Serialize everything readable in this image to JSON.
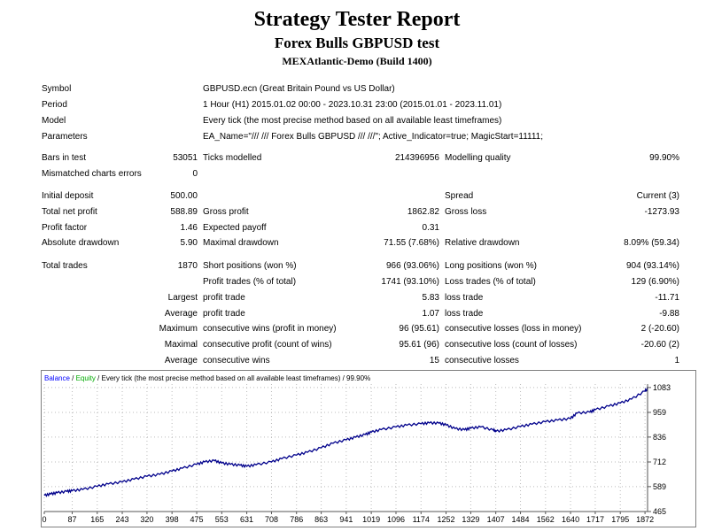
{
  "report": {
    "title": "Strategy Tester Report",
    "subtitle": "Forex Bulls GBPUSD test",
    "server": "MEXAtlantic-Demo (Build 1400)"
  },
  "settings": {
    "symbol_label": "Symbol",
    "symbol_value": "GBPUSD.ecn (Great Britain Pound vs US Dollar)",
    "period_label": "Period",
    "period_value": "1 Hour (H1) 2015.01.02 00:00 - 2023.10.31 23:00 (2015.01.01 - 2023.11.01)",
    "model_label": "Model",
    "model_value": "Every tick (the most precise method based on all available least timeframes)",
    "parameters_label": "Parameters",
    "parameters_value": "EA_Name=\"/// /// Forex Bulls GBPUSD /// ///\"; Active_Indicator=true; MagicStart=11111;"
  },
  "stats": {
    "bars_label": "Bars in test",
    "bars_value": "53051",
    "ticks_label": "Ticks modelled",
    "ticks_value": "214396956",
    "quality_label": "Modelling quality",
    "quality_value": "99.90%",
    "mismatch_label": "Mismatched charts errors",
    "mismatch_value": "0",
    "deposit_label": "Initial deposit",
    "deposit_value": "500.00",
    "spread_label": "Spread",
    "spread_value": "Current (3)",
    "netprofit_label": "Total net profit",
    "netprofit_value": "588.89",
    "grossprofit_label": "Gross profit",
    "grossprofit_value": "1862.82",
    "grossloss_label": "Gross loss",
    "grossloss_value": "-1273.93",
    "pf_label": "Profit factor",
    "pf_value": "1.46",
    "ep_label": "Expected payoff",
    "ep_value": "0.31",
    "absdd_label": "Absolute drawdown",
    "absdd_value": "5.90",
    "maxdd_label": "Maximal drawdown",
    "maxdd_value": "71.55 (7.68%)",
    "reldd_label": "Relative drawdown",
    "reldd_value": "8.09% (59.34)",
    "trades_label": "Total trades",
    "trades_value": "1870",
    "short_label": "Short positions (won %)",
    "short_value": "966 (93.06%)",
    "long_label": "Long positions (won %)",
    "long_value": "904 (93.14%)",
    "pt_label": "Profit trades (% of total)",
    "pt_value": "1741 (93.10%)",
    "lt_label": "Loss trades (% of total)",
    "lt_value": "129 (6.90%)",
    "largest_label": "Largest",
    "largest_pt_label": "profit trade",
    "largest_pt_value": "5.83",
    "largest_lt_label": "loss trade",
    "largest_lt_value": "-11.71",
    "average_label": "Average",
    "average_pt_label": "profit trade",
    "average_pt_value": "1.07",
    "average_lt_label": "loss trade",
    "average_lt_value": "-9.88",
    "maximum_label": "Maximum",
    "max_cw_label": "consecutive wins (profit in money)",
    "max_cw_value": "96 (95.61)",
    "max_cl_label": "consecutive losses (loss in money)",
    "max_cl_value": "2 (-20.60)",
    "maximal_label": "Maximal",
    "mxl_cp_label": "consecutive profit (count of wins)",
    "mxl_cp_value": "95.61 (96)",
    "mxl_cl_label": "consecutive loss (count of losses)",
    "mxl_cl_value": "-20.60 (2)",
    "average2_label": "Average",
    "avg_cw_label": "consecutive wins",
    "avg_cw_value": "15",
    "avg_cl_label": "consecutive losses",
    "avg_cl_value": "1"
  },
  "chart_header": {
    "balance": "Balance",
    "sep": " / ",
    "equity": "Equity",
    "rest": " / Every tick (the most precise method based on all available least timeframes) / 99.90%",
    "balance_color": "#0000ff",
    "equity_color": "#00aa00",
    "line_color": "#00008b"
  },
  "chart_data": {
    "type": "line",
    "title": "",
    "xlabel": "",
    "ylabel": "",
    "x_ticks": [
      "0",
      "87",
      "165",
      "243",
      "320",
      "398",
      "475",
      "553",
      "631",
      "708",
      "786",
      "863",
      "941",
      "1019",
      "1096",
      "1174",
      "1252",
      "1329",
      "1407",
      "1484",
      "1562",
      "1640",
      "1717",
      "1795",
      "1872"
    ],
    "y_ticks": [
      "465",
      "589",
      "712",
      "836",
      "959",
      "1083"
    ],
    "xlim": [
      0,
      1880
    ],
    "ylim": [
      465,
      1100
    ],
    "series": [
      {
        "name": "Balance",
        "x": [
          0,
          20,
          40,
          70,
          87,
          120,
          165,
          200,
          243,
          280,
          320,
          360,
          398,
          430,
          475,
          500,
          530,
          553,
          580,
          610,
          631,
          660,
          708,
          740,
          786,
          820,
          863,
          900,
          941,
          970,
          1000,
          1019,
          1050,
          1096,
          1130,
          1174,
          1200,
          1230,
          1252,
          1280,
          1310,
          1329,
          1360,
          1400,
          1407,
          1440,
          1484,
          1520,
          1562,
          1600,
          1640,
          1660,
          1700,
          1717,
          1760,
          1795,
          1830,
          1872,
          1880
        ],
        "y": [
          545,
          552,
          558,
          565,
          568,
          575,
          590,
          602,
          612,
          626,
          640,
          650,
          666,
          680,
          700,
          712,
          718,
          706,
          700,
          695,
          690,
          698,
          712,
          728,
          746,
          760,
          782,
          805,
          822,
          835,
          848,
          860,
          873,
          886,
          895,
          902,
          906,
          905,
          896,
          878,
          872,
          880,
          886,
          870,
          864,
          872,
          888,
          900,
          912,
          920,
          928,
          955,
          960,
          972,
          990,
          1005,
          1025,
          1065,
          1072
        ]
      }
    ]
  }
}
